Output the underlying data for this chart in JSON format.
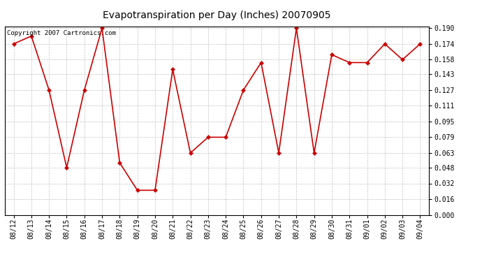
{
  "title": "Evapotranspiration per Day (Inches) 20070905",
  "copyright_text": "Copyright 2007 Cartronics.com",
  "x_labels": [
    "08/12",
    "08/13",
    "08/14",
    "08/15",
    "08/16",
    "08/17",
    "08/18",
    "08/19",
    "08/20",
    "08/21",
    "08/22",
    "08/23",
    "08/24",
    "08/25",
    "08/26",
    "08/27",
    "08/28",
    "08/29",
    "08/30",
    "08/31",
    "09/01",
    "09/02",
    "09/03",
    "09/04"
  ],
  "y_values": [
    0.174,
    0.182,
    0.127,
    0.048,
    0.127,
    0.19,
    0.053,
    0.025,
    0.025,
    0.148,
    0.063,
    0.079,
    0.079,
    0.127,
    0.155,
    0.063,
    0.19,
    0.063,
    0.163,
    0.155,
    0.155,
    0.174,
    0.158,
    0.174
  ],
  "line_color": "#cc0000",
  "marker": "D",
  "marker_size": 3,
  "bg_color": "#ffffff",
  "plot_bg_color": "#ffffff",
  "grid_color": "#bbbbbb",
  "ylim_min": 0.0,
  "ylim_max": 0.19,
  "yticks": [
    0.0,
    0.016,
    0.032,
    0.048,
    0.063,
    0.079,
    0.095,
    0.111,
    0.127,
    0.143,
    0.158,
    0.174,
    0.19
  ],
  "ytick_labels": [
    "0.000",
    "0.016",
    "0.032",
    "0.048",
    "0.063",
    "0.079",
    "0.095",
    "0.111",
    "0.127",
    "0.143",
    "0.158",
    "0.174",
    "0.190"
  ],
  "title_fontsize": 10,
  "tick_fontsize": 7,
  "copyright_fontsize": 6.5,
  "linewidth": 1.2
}
